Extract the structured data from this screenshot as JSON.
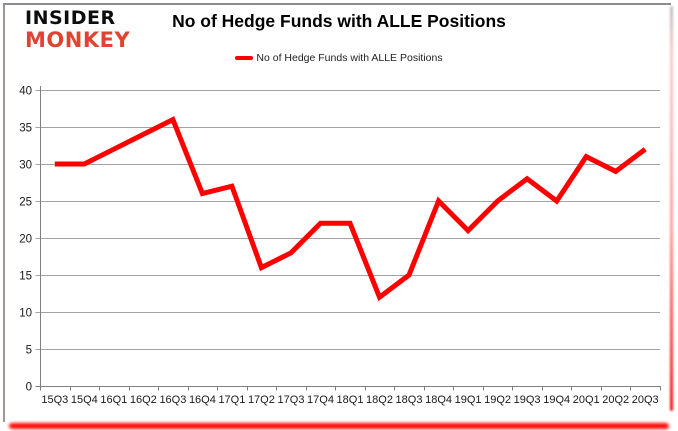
{
  "logo": {
    "line1": "INSIDER",
    "line2": "MONKEY"
  },
  "header": {
    "title": "No of Hedge Funds with ALLE Positions"
  },
  "legend": {
    "label": "No of Hedge Funds with ALLE Positions",
    "swatch_color": "#ff0000"
  },
  "chart_data": {
    "type": "line",
    "title": "No of Hedge Funds with ALLE Positions",
    "categories": [
      "15Q3",
      "15Q4",
      "16Q1",
      "16Q2",
      "16Q3",
      "16Q4",
      "17Q1",
      "17Q2",
      "17Q3",
      "17Q4",
      "18Q1",
      "18Q2",
      "18Q3",
      "18Q4",
      "19Q1",
      "19Q2",
      "19Q3",
      "19Q4",
      "20Q1",
      "20Q2",
      "20Q3"
    ],
    "values": [
      30,
      30,
      32,
      34,
      36,
      26,
      27,
      16,
      18,
      22,
      22,
      12,
      15,
      25,
      21,
      25,
      28,
      25,
      31,
      29,
      32
    ],
    "xlabel": "",
    "ylabel": "",
    "ylim": [
      0,
      40
    ],
    "ytick_step": 5,
    "grid": true,
    "legend_position": "top",
    "line_color": "#ff0000",
    "grid_color": "#a3a3a3",
    "axis_color": "#7f7f7f",
    "label_color": "#1a1a1a"
  }
}
